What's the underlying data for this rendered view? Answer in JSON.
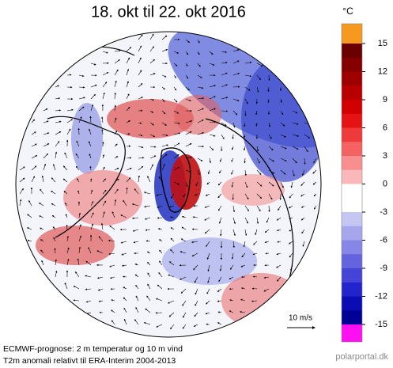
{
  "title": "18. okt til 22. okt 2016",
  "colorbar": {
    "unit": "°C",
    "ticks": [
      15,
      12,
      9,
      6,
      3,
      0,
      -3,
      -6,
      -9,
      -12,
      -15
    ],
    "over_color": "#f59a1e",
    "under_color": "#ff10f0",
    "colors": [
      "#6a0000",
      "#840000",
      "#9e0000",
      "#b80000",
      "#d00000",
      "#e41414",
      "#ee3a3a",
      "#f46262",
      "#f88e8e",
      "#fbb8b8",
      "#ffffff",
      "#ffffff",
      "#c6c6f2",
      "#a6a6ec",
      "#8686e6",
      "#6464de",
      "#4444d6",
      "#2424cc",
      "#0c0cb4",
      "#000096"
    ]
  },
  "wind_scale": "10 m/s",
  "caption": [
    "ECMWF-prognose: 2 m temperatur og 10 m vind",
    "T2m anomali relativt til ERA-Interim 2004-2013"
  ],
  "source": "polarportal.dk"
}
